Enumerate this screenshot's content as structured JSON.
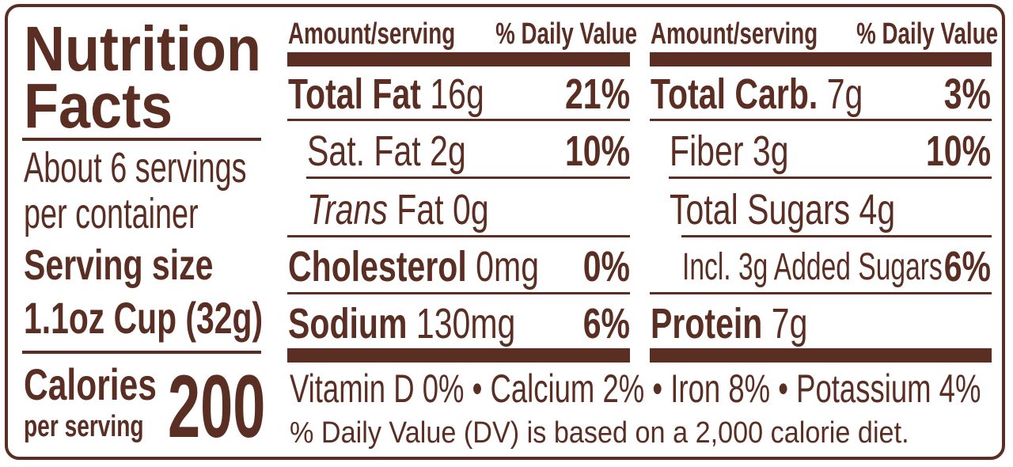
{
  "title_line1": "Nutrition",
  "title_line2": "Facts",
  "servings_line1": "About 6 servings",
  "servings_line2": "per container",
  "serving_size_label": "Serving size",
  "serving_size_value": "1.1oz Cup (32g)",
  "calories_label": "Calories",
  "calories_sublabel": "per serving",
  "calories_value": "200",
  "left_table": {
    "header_amount": "Amount/serving",
    "header_dv": "% Daily Value",
    "rows": [
      {
        "label": "Total Fat",
        "amount": "16g",
        "dv": "21%"
      },
      {
        "label": "Sat. Fat",
        "amount": "2g",
        "dv": "10%"
      },
      {
        "label_italic": "Trans",
        "label": "Fat",
        "amount": "0g",
        "dv": ""
      },
      {
        "label": "Cholesterol",
        "amount": "0mg",
        "dv": "0%"
      },
      {
        "label": "Sodium",
        "amount": "130mg",
        "dv": "6%"
      }
    ]
  },
  "right_table": {
    "header_amount": "Amount/serving",
    "header_dv": "% Daily Value",
    "rows": [
      {
        "label": "Total Carb.",
        "amount": "7g",
        "dv": "3%"
      },
      {
        "label": "Fiber",
        "amount": "3g",
        "dv": "10%"
      },
      {
        "label": "Total Sugars",
        "amount": "4g",
        "dv": ""
      },
      {
        "text": "Incl. 3g Added Sugars",
        "dv": "6%"
      },
      {
        "label": "Protein",
        "amount": "7g",
        "dv": ""
      }
    ]
  },
  "micronutrients": "Vitamin D 0% • Calcium 2% • Iron 8% • Potassium 4%",
  "footnote": "% Daily Value (DV) is based on a 2,000 calorie diet.",
  "colors": {
    "ink": "#5a2e22",
    "background": "#ffffff"
  }
}
